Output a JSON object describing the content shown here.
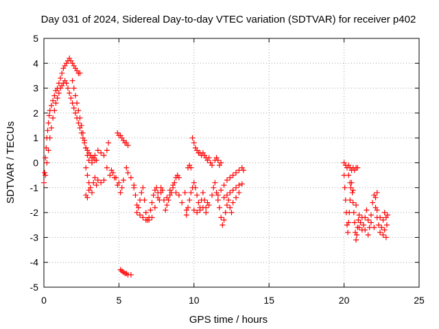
{
  "chart_data": {
    "type": "scatter",
    "title": "Day 031 of 2024, Sidereal Day-to-day VTEC variation (SDTVAR) for receiver p402",
    "xlabel": "GPS time / hours",
    "ylabel": "SDTVAR / TECUs",
    "xlim": [
      0,
      25
    ],
    "ylim": [
      -5,
      5
    ],
    "x_ticks": [
      "0",
      "5",
      "10",
      "15",
      "20",
      "25"
    ],
    "y_ticks": [
      "5",
      "4",
      "3",
      "2",
      "1",
      "0",
      "-1",
      "-2",
      "-3",
      "-4",
      "-5"
    ],
    "grid": true,
    "marker": "+",
    "color": "#ff0000",
    "series": [
      {
        "name": "SDTVAR",
        "points": [
          [
            0.0,
            -0.8
          ],
          [
            0.05,
            -0.4
          ],
          [
            0.1,
            0.2
          ],
          [
            0.15,
            0.6
          ],
          [
            0.2,
            1.0
          ],
          [
            0.25,
            1.3
          ],
          [
            0.3,
            1.6
          ],
          [
            0.35,
            1.9
          ],
          [
            0.4,
            2.1
          ],
          [
            0.5,
            2.3
          ],
          [
            0.6,
            2.5
          ],
          [
            0.7,
            2.7
          ],
          [
            0.8,
            2.9
          ],
          [
            0.9,
            3.0
          ],
          [
            1.0,
            3.2
          ],
          [
            1.1,
            3.4
          ],
          [
            1.2,
            3.6
          ],
          [
            1.3,
            3.8
          ],
          [
            1.4,
            3.9
          ],
          [
            1.5,
            4.0
          ],
          [
            1.6,
            4.1
          ],
          [
            1.7,
            4.2
          ],
          [
            1.8,
            4.1
          ],
          [
            1.9,
            4.0
          ],
          [
            2.0,
            3.9
          ],
          [
            2.1,
            3.8
          ],
          [
            2.2,
            3.7
          ],
          [
            2.3,
            3.6
          ],
          [
            2.4,
            3.6
          ],
          [
            0.1,
            -0.5
          ],
          [
            0.2,
            0.0
          ],
          [
            0.3,
            0.5
          ],
          [
            0.4,
            1.0
          ],
          [
            0.5,
            1.4
          ],
          [
            0.6,
            1.8
          ],
          [
            0.7,
            2.1
          ],
          [
            0.8,
            2.4
          ],
          [
            0.9,
            2.6
          ],
          [
            1.0,
            2.8
          ],
          [
            1.1,
            3.0
          ],
          [
            1.2,
            3.1
          ],
          [
            1.3,
            3.2
          ],
          [
            1.4,
            3.3
          ],
          [
            1.5,
            3.2
          ],
          [
            1.6,
            3.0
          ],
          [
            1.7,
            2.8
          ],
          [
            1.8,
            2.6
          ],
          [
            1.9,
            2.4
          ],
          [
            2.0,
            2.2
          ],
          [
            2.1,
            2.0
          ],
          [
            2.2,
            1.8
          ],
          [
            2.3,
            1.6
          ],
          [
            2.4,
            1.4
          ],
          [
            2.5,
            1.2
          ],
          [
            2.6,
            1.0
          ],
          [
            2.7,
            0.8
          ],
          [
            2.8,
            0.6
          ],
          [
            2.9,
            0.5
          ],
          [
            3.0,
            0.4
          ],
          [
            3.1,
            0.3
          ],
          [
            3.2,
            0.2
          ],
          [
            3.3,
            0.2
          ],
          [
            3.4,
            0.1
          ],
          [
            3.5,
            0.1
          ],
          [
            1.9,
            3.3
          ],
          [
            2.0,
            3.0
          ],
          [
            2.1,
            2.7
          ],
          [
            2.2,
            2.4
          ],
          [
            2.3,
            2.1
          ],
          [
            2.4,
            1.8
          ],
          [
            2.5,
            1.5
          ],
          [
            2.6,
            1.2
          ],
          [
            2.7,
            0.9
          ],
          [
            2.8,
            0.6
          ],
          [
            2.9,
            0.3
          ],
          [
            3.0,
            0.1
          ],
          [
            3.2,
            0.0
          ],
          [
            3.4,
            0.3
          ],
          [
            3.6,
            0.5
          ],
          [
            3.8,
            0.4
          ],
          [
            4.0,
            0.3
          ],
          [
            4.2,
            0.5
          ],
          [
            4.3,
            0.8
          ],
          [
            2.8,
            -0.2
          ],
          [
            2.9,
            -0.5
          ],
          [
            3.0,
            -0.8
          ],
          [
            3.1,
            -1.0
          ],
          [
            3.2,
            -1.2
          ],
          [
            3.3,
            -0.8
          ],
          [
            3.4,
            -0.6
          ],
          [
            3.6,
            -0.7
          ],
          [
            3.8,
            -0.8
          ],
          [
            4.0,
            -0.7
          ],
          [
            2.9,
            -1.4
          ],
          [
            2.8,
            -1.3
          ],
          [
            3.0,
            -1.1
          ],
          [
            3.5,
            -0.9
          ],
          [
            4.2,
            -0.2
          ],
          [
            4.4,
            -0.5
          ],
          [
            4.6,
            -0.4
          ],
          [
            4.8,
            -0.6
          ],
          [
            5.0,
            -0.8
          ],
          [
            5.2,
            -1.0
          ],
          [
            4.5,
            -0.3
          ],
          [
            4.7,
            -0.6
          ],
          [
            4.9,
            -0.9
          ],
          [
            5.1,
            -1.2
          ],
          [
            5.3,
            -0.7
          ],
          [
            5.5,
            -0.2
          ],
          [
            5.6,
            -0.4
          ],
          [
            5.8,
            -0.6
          ],
          [
            6.0,
            -0.9
          ],
          [
            4.9,
            1.2
          ],
          [
            5.0,
            1.1
          ],
          [
            5.1,
            1.1
          ],
          [
            5.2,
            1.0
          ],
          [
            5.3,
            0.9
          ],
          [
            5.4,
            0.8
          ],
          [
            5.5,
            0.8
          ],
          [
            5.6,
            0.7
          ],
          [
            5.1,
            -4.3
          ],
          [
            5.2,
            -4.35
          ],
          [
            5.3,
            -4.4
          ],
          [
            5.4,
            -4.45
          ],
          [
            5.5,
            -4.45
          ],
          [
            5.6,
            -4.5
          ],
          [
            5.8,
            -4.5
          ],
          [
            6.0,
            -1.0
          ],
          [
            6.1,
            -1.3
          ],
          [
            6.2,
            -1.7
          ],
          [
            6.3,
            -1.8
          ],
          [
            6.4,
            -1.5
          ],
          [
            6.5,
            -1.2
          ],
          [
            6.6,
            -1.0
          ],
          [
            6.7,
            -1.5
          ],
          [
            6.8,
            -2.0
          ],
          [
            6.9,
            -2.3
          ],
          [
            7.0,
            -2.2
          ],
          [
            7.1,
            -1.9
          ],
          [
            7.2,
            -1.6
          ],
          [
            7.3,
            -1.3
          ],
          [
            7.4,
            -1.1
          ],
          [
            7.5,
            -1.0
          ],
          [
            7.6,
            -1.2
          ],
          [
            7.7,
            -1.5
          ],
          [
            7.8,
            -1.0
          ],
          [
            7.9,
            -1.1
          ],
          [
            6.2,
            -2.0
          ],
          [
            6.4,
            -2.1
          ],
          [
            6.6,
            -2.2
          ],
          [
            6.8,
            -2.3
          ],
          [
            7.0,
            -2.3
          ],
          [
            7.2,
            -2.2
          ],
          [
            7.4,
            -1.8
          ],
          [
            7.6,
            -1.4
          ],
          [
            7.8,
            -1.2
          ],
          [
            8.0,
            -1.5
          ],
          [
            8.1,
            -1.9
          ],
          [
            8.2,
            -1.7
          ],
          [
            8.3,
            -1.5
          ],
          [
            8.4,
            -1.3
          ],
          [
            8.5,
            -1.2
          ],
          [
            8.6,
            -1.0
          ],
          [
            8.7,
            -0.8
          ],
          [
            8.8,
            -0.6
          ],
          [
            8.9,
            -0.5
          ],
          [
            9.0,
            -0.6
          ],
          [
            8.2,
            -1.4
          ],
          [
            8.4,
            -1.1
          ],
          [
            8.6,
            -0.9
          ],
          [
            8.8,
            -1.2
          ],
          [
            9.0,
            -1.3
          ],
          [
            9.2,
            -1.6
          ],
          [
            9.4,
            -1.2
          ],
          [
            9.5,
            -1.9
          ],
          [
            9.6,
            -0.2
          ],
          [
            9.7,
            -0.1
          ],
          [
            9.8,
            -0.2
          ],
          [
            9.5,
            -2.1
          ],
          [
            9.6,
            -1.8
          ],
          [
            9.7,
            -1.5
          ],
          [
            9.8,
            -1.2
          ],
          [
            9.9,
            -1.0
          ],
          [
            10.0,
            -0.8
          ],
          [
            10.1,
            -1.0
          ],
          [
            10.2,
            -1.3
          ],
          [
            10.3,
            -1.6
          ],
          [
            10.4,
            -1.8
          ],
          [
            10.5,
            -1.5
          ],
          [
            10.6,
            -1.2
          ],
          [
            10.7,
            -1.5
          ],
          [
            10.8,
            -1.8
          ],
          [
            10.9,
            -1.6
          ],
          [
            9.9,
            1.0
          ],
          [
            10.0,
            0.8
          ],
          [
            10.1,
            0.6
          ],
          [
            10.2,
            0.5
          ],
          [
            10.3,
            0.4
          ],
          [
            10.4,
            0.4
          ],
          [
            10.5,
            0.3
          ],
          [
            10.6,
            0.4
          ],
          [
            10.7,
            0.3
          ],
          [
            10.8,
            0.2
          ],
          [
            10.9,
            0.1
          ],
          [
            11.0,
            0.2
          ],
          [
            11.1,
            0.0
          ],
          [
            11.2,
            -0.1
          ],
          [
            11.4,
            0.1
          ],
          [
            11.5,
            0.2
          ],
          [
            11.6,
            0.1
          ],
          [
            11.7,
            -0.1
          ],
          [
            11.8,
            0.0
          ],
          [
            10.0,
            -1.9
          ],
          [
            10.2,
            -2.0
          ],
          [
            10.4,
            -1.9
          ],
          [
            10.6,
            -1.8
          ],
          [
            10.8,
            -2.0
          ],
          [
            11.0,
            -1.7
          ],
          [
            11.2,
            -1.3
          ],
          [
            11.3,
            -1.0
          ],
          [
            11.4,
            -0.8
          ],
          [
            11.5,
            -1.2
          ],
          [
            11.6,
            -1.5
          ],
          [
            11.7,
            -1.8
          ],
          [
            11.8,
            -2.2
          ],
          [
            11.9,
            -2.5
          ],
          [
            12.0,
            -2.3
          ],
          [
            12.1,
            -2.0
          ],
          [
            12.2,
            -1.7
          ],
          [
            12.3,
            -1.5
          ],
          [
            12.4,
            -1.8
          ],
          [
            12.5,
            -2.0
          ],
          [
            11.6,
            -1.3
          ],
          [
            11.8,
            -1.1
          ],
          [
            12.0,
            -0.9
          ],
          [
            12.2,
            -0.7
          ],
          [
            12.4,
            -0.6
          ],
          [
            12.6,
            -0.5
          ],
          [
            12.8,
            -0.4
          ],
          [
            13.0,
            -0.3
          ],
          [
            13.2,
            -0.2
          ],
          [
            13.3,
            -0.3
          ],
          [
            12.0,
            -1.4
          ],
          [
            12.2,
            -1.3
          ],
          [
            12.4,
            -1.2
          ],
          [
            12.6,
            -1.1
          ],
          [
            12.8,
            -1.0
          ],
          [
            13.0,
            -0.9
          ],
          [
            13.2,
            -0.85
          ],
          [
            12.6,
            -1.6
          ],
          [
            12.8,
            -1.4
          ],
          [
            13.0,
            -1.2
          ],
          [
            20.0,
            0.0
          ],
          [
            20.1,
            -0.1
          ],
          [
            20.2,
            -0.2
          ],
          [
            20.3,
            -0.1
          ],
          [
            20.4,
            -0.2
          ],
          [
            20.5,
            -0.3
          ],
          [
            20.6,
            -0.2
          ],
          [
            20.7,
            -0.3
          ],
          [
            20.8,
            -0.2
          ],
          [
            20.9,
            -0.2
          ],
          [
            20.0,
            -0.5
          ],
          [
            20.05,
            -1.0
          ],
          [
            20.1,
            -1.5
          ],
          [
            20.15,
            -2.0
          ],
          [
            20.2,
            -2.5
          ],
          [
            20.25,
            -2.8
          ],
          [
            20.3,
            -2.4
          ],
          [
            20.35,
            -2.0
          ],
          [
            20.4,
            -1.5
          ],
          [
            20.45,
            -1.0
          ],
          [
            20.5,
            -0.8
          ],
          [
            20.55,
            -1.2
          ],
          [
            20.6,
            -1.6
          ],
          [
            20.65,
            -2.0
          ],
          [
            20.7,
            -2.4
          ],
          [
            20.75,
            -2.8
          ],
          [
            20.8,
            -3.1
          ],
          [
            20.85,
            -2.9
          ],
          [
            20.9,
            -2.6
          ],
          [
            20.95,
            -2.3
          ],
          [
            21.0,
            -2.1
          ],
          [
            21.1,
            -2.4
          ],
          [
            21.2,
            -2.7
          ],
          [
            21.3,
            -2.5
          ],
          [
            21.4,
            -2.2
          ],
          [
            21.5,
            -1.9
          ],
          [
            21.6,
            -2.3
          ],
          [
            21.7,
            -2.6
          ],
          [
            21.8,
            -2.4
          ],
          [
            21.9,
            -1.6
          ],
          [
            22.0,
            -1.3
          ],
          [
            22.1,
            -1.8
          ],
          [
            22.2,
            -2.2
          ],
          [
            22.3,
            -2.5
          ],
          [
            22.4,
            -2.8
          ],
          [
            22.5,
            -2.6
          ],
          [
            22.6,
            -2.3
          ],
          [
            22.7,
            -2.7
          ],
          [
            22.8,
            -3.0
          ],
          [
            22.85,
            -2.5
          ],
          [
            20.3,
            -0.5
          ],
          [
            20.4,
            -0.8
          ],
          [
            20.6,
            -1.1
          ],
          [
            20.8,
            -1.7
          ],
          [
            21.0,
            -2.6
          ],
          [
            21.2,
            -2.2
          ],
          [
            21.4,
            -2.7
          ],
          [
            21.6,
            -2.9
          ],
          [
            21.8,
            -2.1
          ],
          [
            22.0,
            -2.6
          ],
          [
            22.2,
            -1.9
          ],
          [
            22.4,
            -2.2
          ],
          [
            22.6,
            -2.9
          ],
          [
            22.7,
            -2.0
          ],
          [
            22.8,
            -2.2
          ],
          [
            22.9,
            -2.1
          ],
          [
            22.1,
            -1.4
          ],
          [
            22.2,
            -1.2
          ]
        ]
      }
    ]
  }
}
